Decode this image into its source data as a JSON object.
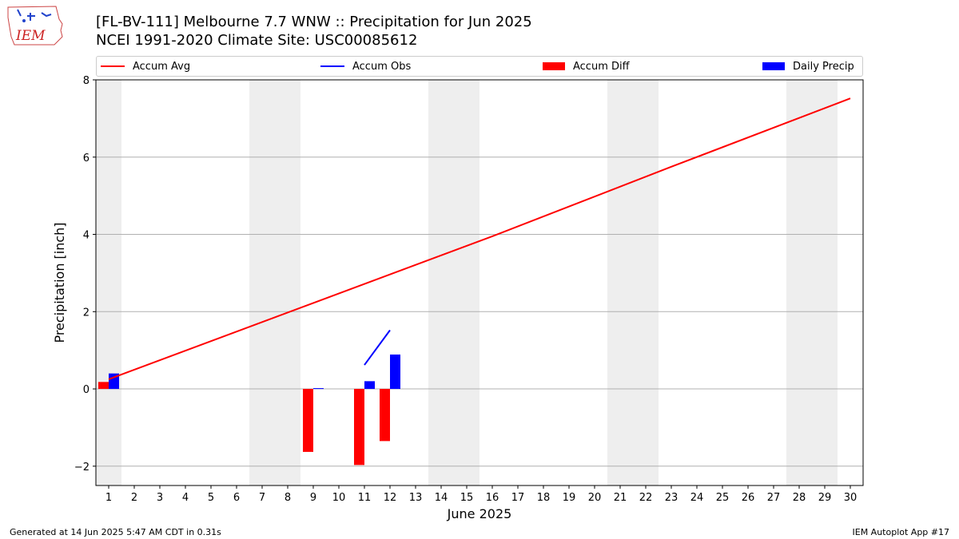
{
  "logo_text": "IEM",
  "colors": {
    "accum_avg": "#ff0000",
    "accum_obs": "#0000ff",
    "accum_diff": "#ff0000",
    "daily_precip": "#0000ff",
    "weekend_shade": "#eeeeee",
    "grid": "#b0b0b0"
  },
  "chart_data": {
    "type": "bar",
    "title": "[FL-BV-111] Melbourne 7.7 WNW :: Precipitation for Jun 2025",
    "subtitle": "NCEI 1991-2020 Climate Site: USC00085612",
    "xlabel": "June 2025",
    "ylabel": "Precipitation [inch]",
    "ylim": [
      -2.5,
      8
    ],
    "xlim": [
      0.5,
      30.5
    ],
    "yticks": [
      -2,
      0,
      2,
      4,
      6,
      8
    ],
    "ytick_labels": [
      "−2",
      "0",
      "2",
      "4",
      "6",
      "8"
    ],
    "xticks": [
      1,
      2,
      3,
      4,
      5,
      6,
      7,
      8,
      9,
      10,
      11,
      12,
      13,
      14,
      15,
      16,
      17,
      18,
      19,
      20,
      21,
      22,
      23,
      24,
      25,
      26,
      27,
      28,
      29,
      30
    ],
    "grid": "horizontal",
    "legend_position": "top",
    "weekend_days": [
      1,
      7,
      8,
      14,
      15,
      21,
      22,
      28,
      29
    ],
    "series": [
      {
        "name": "Accum Avg",
        "kind": "line",
        "x": [
          1,
          16,
          23,
          30
        ],
        "values": [
          0.25,
          3.95,
          5.75,
          7.52
        ]
      },
      {
        "name": "Accum Obs",
        "kind": "line",
        "x": [
          11,
          12
        ],
        "values": [
          0.62,
          1.52
        ]
      },
      {
        "name": "Accum Diff",
        "kind": "bar",
        "x": [
          1,
          9,
          11,
          12
        ],
        "values": [
          0.18,
          -1.63,
          -1.97,
          -1.35
        ]
      },
      {
        "name": "Daily Precip",
        "kind": "bar",
        "x": [
          1,
          9,
          11,
          12
        ],
        "values": [
          0.4,
          0.02,
          0.2,
          0.89
        ]
      }
    ]
  },
  "footer": {
    "left": "Generated at 14 Jun 2025 5:47 AM CDT in 0.31s",
    "right": "IEM Autoplot App #17"
  }
}
